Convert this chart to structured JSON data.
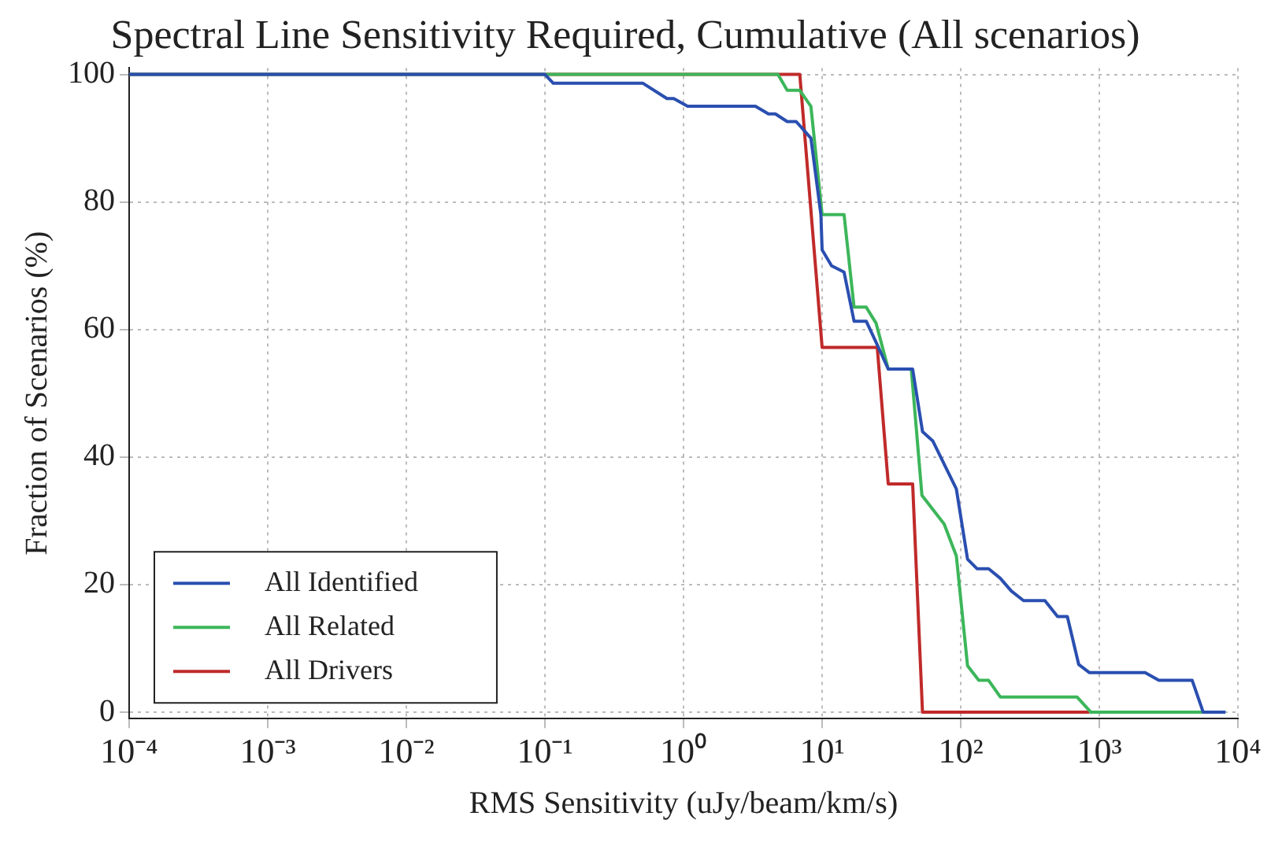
{
  "chart_data": {
    "type": "line",
    "title": "Spectral Line Sensitivity Required, Cumulative (All scenarios)",
    "xlabel": "RMS Sensitivity (uJy/beam/km/s)",
    "ylabel": "Fraction of Scenarios (%)",
    "log": "x",
    "xlim": [
      0.0001,
      10000
    ],
    "xticks": [
      {
        "value": 0.0001,
        "label": "10⁻⁴"
      },
      {
        "value": 0.001,
        "label": "10⁻³"
      },
      {
        "value": 0.01,
        "label": "10⁻²"
      },
      {
        "value": 0.1,
        "label": "10⁻¹"
      },
      {
        "value": 1,
        "label": "10⁰"
      },
      {
        "value": 10,
        "label": "10¹"
      },
      {
        "value": 100,
        "label": "10²"
      },
      {
        "value": 1000,
        "label": "10³"
      },
      {
        "value": 10000,
        "label": "10⁴"
      }
    ],
    "ylim": [
      -1,
      101
    ],
    "yticks": [
      0,
      20,
      40,
      60,
      80,
      100
    ],
    "grid": true,
    "legend": "bottom left",
    "line_style": "solid",
    "marker": "none",
    "series": [
      {
        "name": "All Identified",
        "color": "#2a4fb0",
        "x": [
          0.0001,
          0.1,
          0.115,
          0.51,
          0.76,
          0.85,
          1.07,
          3.3,
          4.1,
          4.6,
          5.6,
          6.5,
          8.3,
          9.8,
          10,
          11.7,
          14.4,
          17,
          20.8,
          24.5,
          30,
          45,
          53,
          63,
          93,
          112,
          131,
          159,
          193,
          232,
          284,
          405,
          500,
          588,
          710,
          850,
          2140,
          2690,
          4680,
          5620,
          8130
        ],
        "values": [
          100,
          100,
          98.6,
          98.6,
          96.2,
          96.2,
          95,
          95,
          93.8,
          93.8,
          92.6,
          92.6,
          90,
          78,
          72.5,
          70,
          69,
          61.3,
          61.3,
          58,
          53.8,
          53.8,
          44,
          42.5,
          35,
          24,
          22.5,
          22.5,
          21,
          19,
          17.5,
          17.5,
          15,
          15,
          7.5,
          6.2,
          6.2,
          5,
          5,
          0,
          0
        ]
      },
      {
        "name": "All Related",
        "color": "#3cb65a",
        "x": [
          0.0001,
          4.8,
          5.6,
          6.9,
          8.3,
          10,
          14.4,
          17,
          20.8,
          24.5,
          30,
          44,
          52.5,
          76,
          93,
          112,
          135,
          159,
          193,
          690,
          870,
          8130
        ],
        "values": [
          100,
          100,
          97.5,
          97.5,
          95,
          78,
          78,
          63.5,
          63.5,
          61,
          53.8,
          53.8,
          34,
          29.5,
          24.5,
          7.3,
          5,
          5,
          2.4,
          2.4,
          0,
          0
        ]
      },
      {
        "name": "All Drivers",
        "color": "#c02a2a",
        "x": [
          0.0001,
          6.9,
          10,
          25,
          30,
          45,
          53,
          850
        ],
        "values": [
          100,
          100,
          57.2,
          57.2,
          35.8,
          35.8,
          0,
          0
        ]
      }
    ]
  }
}
